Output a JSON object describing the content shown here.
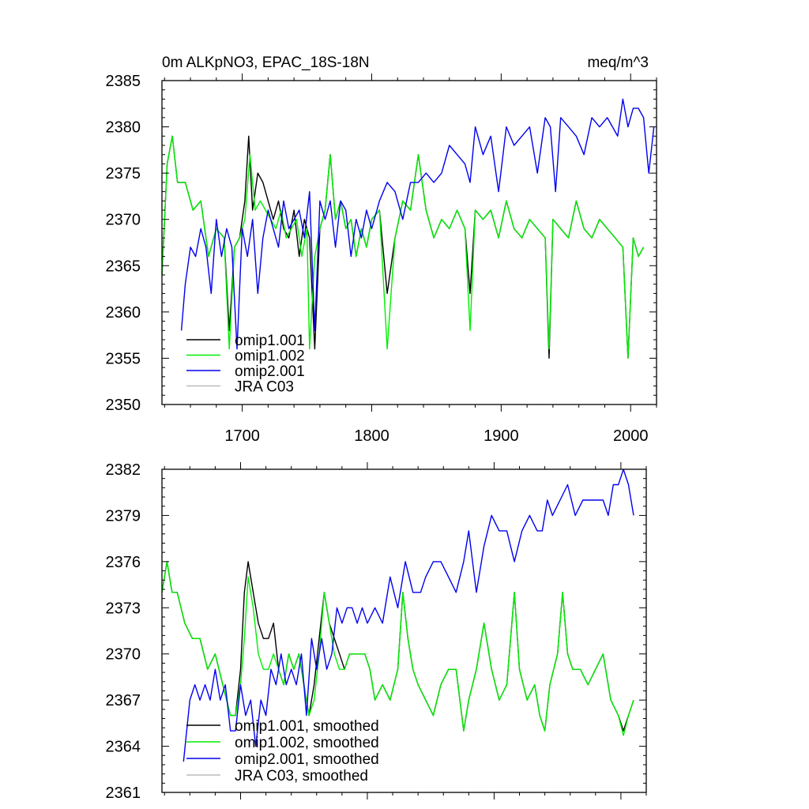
{
  "chart_data": [
    {
      "type": "line",
      "title": "0m ALKpNO3, EPAC_18S-18N",
      "units": "meq/m^3",
      "xlabel": "",
      "ylabel": "",
      "xlim": [
        1638,
        2020
      ],
      "ylim": [
        2350,
        2385
      ],
      "xticks": [
        "1700",
        "1800",
        "1900",
        "2000"
      ],
      "yticks": [
        "2350",
        "2355",
        "2360",
        "2365",
        "2370",
        "2375",
        "2380",
        "2385"
      ],
      "legend_position": "bottom-left",
      "series": [
        {
          "name": "omip1.001",
          "color": "#000000",
          "x": [
            1638,
            1642,
            1646,
            1650,
            1656,
            1662,
            1668,
            1674,
            1680,
            1686,
            1690,
            1694,
            1698,
            1702,
            1705,
            1708,
            1712,
            1716,
            1720,
            1724,
            1728,
            1732,
            1736,
            1740,
            1744,
            1748,
            1752,
            1756,
            1760,
            1764,
            1768,
            1772,
            1776,
            1780,
            1784,
            1788,
            1792,
            1796,
            1800,
            1806,
            1812,
            1818,
            1824,
            1830,
            1836,
            1842,
            1848,
            1854,
            1860,
            1866,
            1872,
            1876,
            1880,
            1886,
            1892,
            1898,
            1904,
            1910,
            1916,
            1922,
            1928,
            1934,
            1937,
            1940,
            1946,
            1952,
            1958,
            1964,
            1970,
            1976,
            1982,
            1988,
            1994,
            1998,
            2002,
            2006,
            2010
          ],
          "y": [
            2364,
            2376,
            2379,
            2374,
            2374,
            2371,
            2372,
            2366,
            2369,
            2368,
            2358,
            2367,
            2368,
            2372,
            2379,
            2371,
            2375,
            2374,
            2372,
            2370,
            2372,
            2369,
            2368,
            2371,
            2366,
            2370,
            2368,
            2356,
            2369,
            2371,
            2377,
            2370,
            2372,
            2369,
            2370,
            2366,
            2369,
            2367,
            2370,
            2371,
            2362,
            2368,
            2372,
            2371,
            2377,
            2371,
            2368,
            2370,
            2369,
            2371,
            2369,
            2362,
            2371,
            2370,
            2371,
            2368,
            2372,
            2369,
            2368,
            2370,
            2369,
            2368,
            2355,
            2370,
            2369,
            2368,
            2372,
            2369,
            2368,
            2370,
            2369,
            2368,
            2367,
            2355,
            2368,
            2366,
            2367
          ]
        },
        {
          "name": "omip1.002",
          "color": "#00ee00",
          "x": [
            1638,
            1642,
            1646,
            1650,
            1656,
            1662,
            1668,
            1674,
            1680,
            1686,
            1690,
            1694,
            1698,
            1702,
            1706,
            1710,
            1714,
            1718,
            1722,
            1726,
            1730,
            1734,
            1738,
            1742,
            1746,
            1750,
            1752,
            1756,
            1760,
            1764,
            1768,
            1772,
            1776,
            1780,
            1784,
            1788,
            1792,
            1796,
            1800,
            1806,
            1812,
            1818,
            1824,
            1830,
            1836,
            1842,
            1848,
            1854,
            1860,
            1866,
            1872,
            1876,
            1880,
            1886,
            1892,
            1898,
            1904,
            1910,
            1916,
            1922,
            1928,
            1934,
            1937,
            1940,
            1946,
            1952,
            1958,
            1964,
            1970,
            1976,
            1982,
            1988,
            1994,
            1998,
            2002,
            2006,
            2010
          ],
          "y": [
            2364,
            2376,
            2379,
            2374,
            2374,
            2371,
            2372,
            2366,
            2369,
            2368,
            2356,
            2367,
            2368,
            2370,
            2377,
            2371,
            2372,
            2371,
            2370,
            2369,
            2371,
            2368,
            2369,
            2370,
            2366,
            2369,
            2356,
            2366,
            2369,
            2371,
            2377,
            2370,
            2372,
            2369,
            2370,
            2366,
            2369,
            2367,
            2370,
            2371,
            2356,
            2368,
            2372,
            2371,
            2377,
            2371,
            2368,
            2370,
            2369,
            2371,
            2369,
            2358,
            2371,
            2370,
            2371,
            2368,
            2372,
            2369,
            2368,
            2370,
            2369,
            2368,
            2356,
            2370,
            2369,
            2368,
            2372,
            2369,
            2368,
            2370,
            2369,
            2368,
            2367,
            2355,
            2368,
            2366,
            2367
          ]
        },
        {
          "name": "omip2.001",
          "color": "#0000ee",
          "x": [
            1653,
            1656,
            1660,
            1664,
            1668,
            1672,
            1676,
            1680,
            1684,
            1688,
            1692,
            1696,
            1700,
            1704,
            1708,
            1712,
            1716,
            1720,
            1724,
            1728,
            1732,
            1736,
            1740,
            1744,
            1748,
            1752,
            1756,
            1760,
            1764,
            1768,
            1772,
            1776,
            1780,
            1784,
            1788,
            1792,
            1796,
            1800,
            1806,
            1812,
            1818,
            1824,
            1830,
            1836,
            1842,
            1848,
            1854,
            1860,
            1866,
            1872,
            1876,
            1880,
            1886,
            1892,
            1898,
            1904,
            1910,
            1916,
            1922,
            1928,
            1934,
            1938,
            1942,
            1946,
            1952,
            1958,
            1964,
            1970,
            1976,
            1982,
            1986,
            1990,
            1994,
            1998,
            2002,
            2006,
            2010,
            2014,
            2018
          ],
          "y": [
            2358,
            2363,
            2367,
            2366,
            2369,
            2367,
            2362,
            2370,
            2366,
            2369,
            2367,
            2356,
            2369,
            2366,
            2370,
            2362,
            2368,
            2371,
            2369,
            2367,
            2372,
            2369,
            2370,
            2371,
            2368,
            2373,
            2358,
            2372,
            2370,
            2372,
            2367,
            2372,
            2371,
            2366,
            2370,
            2368,
            2371,
            2369,
            2372,
            2374,
            2373,
            2370,
            2374,
            2374,
            2375,
            2374,
            2375,
            2378,
            2377,
            2376,
            2374,
            2380,
            2377,
            2379,
            2373,
            2380,
            2378,
            2379,
            2380,
            2375,
            2381,
            2380,
            2373,
            2381,
            2380,
            2379,
            2377,
            2381,
            2380,
            2381,
            2380,
            2379,
            2383,
            2380,
            2382,
            2382,
            2381,
            2375,
            2380
          ]
        },
        {
          "name": "JRA C03",
          "color": "#bbbbbb",
          "x": [],
          "y": []
        }
      ]
    },
    {
      "type": "line",
      "title": "",
      "xlabel": "",
      "ylabel": "",
      "xlim": [
        1638,
        2020
      ],
      "ylim": [
        2361,
        2382
      ],
      "yticks": [
        "2361",
        "2364",
        "2367",
        "2370",
        "2373",
        "2376",
        "2379",
        "2382"
      ],
      "legend_position": "bottom-left",
      "series": [
        {
          "name": "omip1.001, smoothed",
          "color": "#000000",
          "x": [
            1638,
            1642,
            1646,
            1650,
            1656,
            1662,
            1668,
            1674,
            1680,
            1686,
            1692,
            1696,
            1700,
            1703,
            1706,
            1710,
            1714,
            1718,
            1722,
            1726,
            1730,
            1734,
            1738,
            1742,
            1746,
            1750,
            1754,
            1758,
            1762,
            1766,
            1770,
            1774,
            1778,
            1782,
            1786,
            1790,
            1794,
            1798,
            1802,
            1806,
            1812,
            1818,
            1824,
            1828,
            1832,
            1836,
            1840,
            1846,
            1852,
            1858,
            1864,
            1870,
            1876,
            1880,
            1886,
            1892,
            1898,
            1904,
            1910,
            1916,
            1920,
            1926,
            1932,
            1936,
            1940,
            1944,
            1950,
            1954,
            1958,
            1962,
            1968,
            1974,
            1980,
            1986,
            1992,
            1998,
            2002,
            2006,
            2010
          ],
          "y": [
            2374,
            2376,
            2374,
            2374,
            2372,
            2371,
            2371,
            2369,
            2370,
            2368,
            2366,
            2366,
            2369,
            2374,
            2376,
            2374,
            2372,
            2371,
            2371,
            2372,
            2369,
            2368,
            2370,
            2369,
            2370,
            2368,
            2366,
            2368,
            2371,
            2374,
            2372,
            2371,
            2370,
            2369,
            2370,
            2370,
            2370,
            2370,
            2369,
            2367,
            2368,
            2367,
            2369,
            2374,
            2371,
            2369,
            2368,
            2367,
            2366,
            2368,
            2369,
            2369,
            2365,
            2367,
            2369,
            2372,
            2369,
            2367,
            2368,
            2374,
            2369,
            2367,
            2368,
            2366,
            2365,
            2368,
            2370,
            2374,
            2370,
            2369,
            2369,
            2368,
            2369,
            2370,
            2367,
            2366,
            2365,
            2366,
            2367
          ]
        },
        {
          "name": "omip1.002, smoothed",
          "color": "#00ee00",
          "x": [
            1638,
            1642,
            1646,
            1650,
            1656,
            1662,
            1668,
            1674,
            1680,
            1686,
            1692,
            1696,
            1700,
            1703,
            1706,
            1710,
            1714,
            1718,
            1722,
            1726,
            1730,
            1734,
            1738,
            1742,
            1746,
            1750,
            1754,
            1758,
            1762,
            1766,
            1770,
            1774,
            1778,
            1782,
            1786,
            1790,
            1794,
            1798,
            1802,
            1806,
            1812,
            1818,
            1824,
            1828,
            1832,
            1836,
            1840,
            1846,
            1852,
            1858,
            1864,
            1870,
            1876,
            1880,
            1886,
            1892,
            1898,
            1904,
            1910,
            1916,
            1920,
            1926,
            1932,
            1936,
            1940,
            1944,
            1950,
            1954,
            1958,
            1962,
            1968,
            1974,
            1980,
            1986,
            1992,
            1998,
            2002,
            2006,
            2010
          ],
          "y": [
            2374,
            2376,
            2374,
            2374,
            2372,
            2371,
            2371,
            2369,
            2370,
            2368,
            2366,
            2366,
            2368,
            2371,
            2375,
            2373,
            2370,
            2369,
            2369,
            2370,
            2369,
            2368,
            2370,
            2369,
            2370,
            2368,
            2366,
            2367,
            2370,
            2374,
            2372,
            2370,
            2369,
            2369,
            2370,
            2370,
            2370,
            2370,
            2369,
            2367,
            2368,
            2367,
            2369,
            2374,
            2371,
            2369,
            2368,
            2367,
            2366,
            2368,
            2369,
            2369,
            2365,
            2367,
            2369,
            2372,
            2369,
            2367,
            2368,
            2374,
            2369,
            2367,
            2368,
            2366,
            2365,
            2368,
            2370,
            2374,
            2370,
            2369,
            2369,
            2368,
            2369,
            2370,
            2367,
            2366,
            2364.7,
            2366,
            2367
          ]
        },
        {
          "name": "omip2.001, smoothed",
          "color": "#0000ee",
          "x": [
            1655,
            1660,
            1664,
            1668,
            1672,
            1676,
            1680,
            1684,
            1688,
            1692,
            1696,
            1700,
            1704,
            1708,
            1712,
            1716,
            1720,
            1724,
            1728,
            1732,
            1736,
            1740,
            1744,
            1748,
            1752,
            1756,
            1760,
            1764,
            1768,
            1772,
            1776,
            1780,
            1784,
            1788,
            1792,
            1796,
            1800,
            1806,
            1812,
            1818,
            1824,
            1830,
            1836,
            1842,
            1846,
            1852,
            1858,
            1864,
            1870,
            1876,
            1880,
            1886,
            1892,
            1898,
            1904,
            1910,
            1916,
            1922,
            1928,
            1934,
            1938,
            1942,
            1946,
            1952,
            1958,
            1964,
            1970,
            1976,
            1982,
            1986,
            1990,
            1994,
            1998,
            2002,
            2006,
            2010
          ],
          "y": [
            2363,
            2367,
            2368,
            2367,
            2368,
            2367,
            2369,
            2367,
            2368,
            2365,
            2365,
            2368,
            2366,
            2367,
            2364,
            2367,
            2366,
            2369,
            2368,
            2370,
            2368,
            2369,
            2368,
            2370,
            2366,
            2371,
            2369,
            2371,
            2369,
            2370,
            2373,
            2372,
            2373,
            2373,
            2372,
            2373,
            2372,
            2373,
            2372,
            2375,
            2373,
            2376,
            2374,
            2374,
            2375,
            2376,
            2376,
            2375,
            2374,
            2376,
            2378,
            2374,
            2377,
            2379,
            2378,
            2378,
            2376,
            2378,
            2379,
            2378,
            2378,
            2380,
            2379,
            2380,
            2381,
            2379,
            2380,
            2380,
            2380,
            2380,
            2379,
            2381,
            2381,
            2382,
            2381,
            2379
          ]
        },
        {
          "name": "JRA C03, smoothed",
          "color": "#bbbbbb",
          "x": [],
          "y": []
        }
      ]
    }
  ]
}
